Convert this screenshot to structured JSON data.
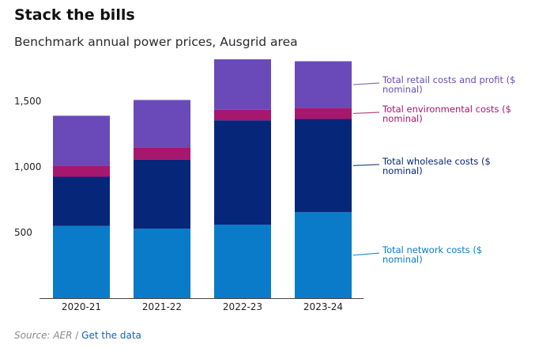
{
  "header": {
    "title": "Stack the bills",
    "subtitle": "Benchmark annual power prices, Ausgrid area"
  },
  "footer": {
    "source_label": "Source: AER",
    "separator": "/",
    "link_label": "Get the data"
  },
  "chart_data": {
    "type": "bar",
    "stacked": true,
    "title": "Stack the bills",
    "subtitle": "Benchmark annual power prices, Ausgrid area",
    "categories": [
      "2020-21",
      "2021-22",
      "2022-23",
      "2023-24"
    ],
    "ylim": [
      0,
      1850
    ],
    "yticks": [
      500,
      1000,
      1500
    ],
    "ytick_labels": [
      "500",
      "1,000",
      "1,500"
    ],
    "grid": false,
    "legend_placement": "right, inline labels",
    "series": [
      {
        "name": "Total network costs ($ nominal)",
        "label_lines": [
          "Total network costs ($",
          "nominal)"
        ],
        "color": "#0a7bc9",
        "values": [
          550,
          530,
          560,
          655
        ]
      },
      {
        "name": "Total wholesale costs ($ nominal)",
        "label_lines": [
          "Total wholesale costs ($",
          "nominal)"
        ],
        "color": "#06267a",
        "values": [
          375,
          525,
          795,
          710
        ]
      },
      {
        "name": "Total environmental costs ($ nominal)",
        "label_lines": [
          "Total environmental costs ($",
          "nominal)"
        ],
        "color": "#a6176e",
        "values": [
          85,
          95,
          80,
          85
        ]
      },
      {
        "name": "Total retail costs and profit ($ nominal)",
        "label_lines": [
          "Total retail costs and profit ($",
          "nominal)"
        ],
        "color": "#6a4ab8",
        "values": [
          380,
          360,
          385,
          355
        ]
      }
    ]
  }
}
